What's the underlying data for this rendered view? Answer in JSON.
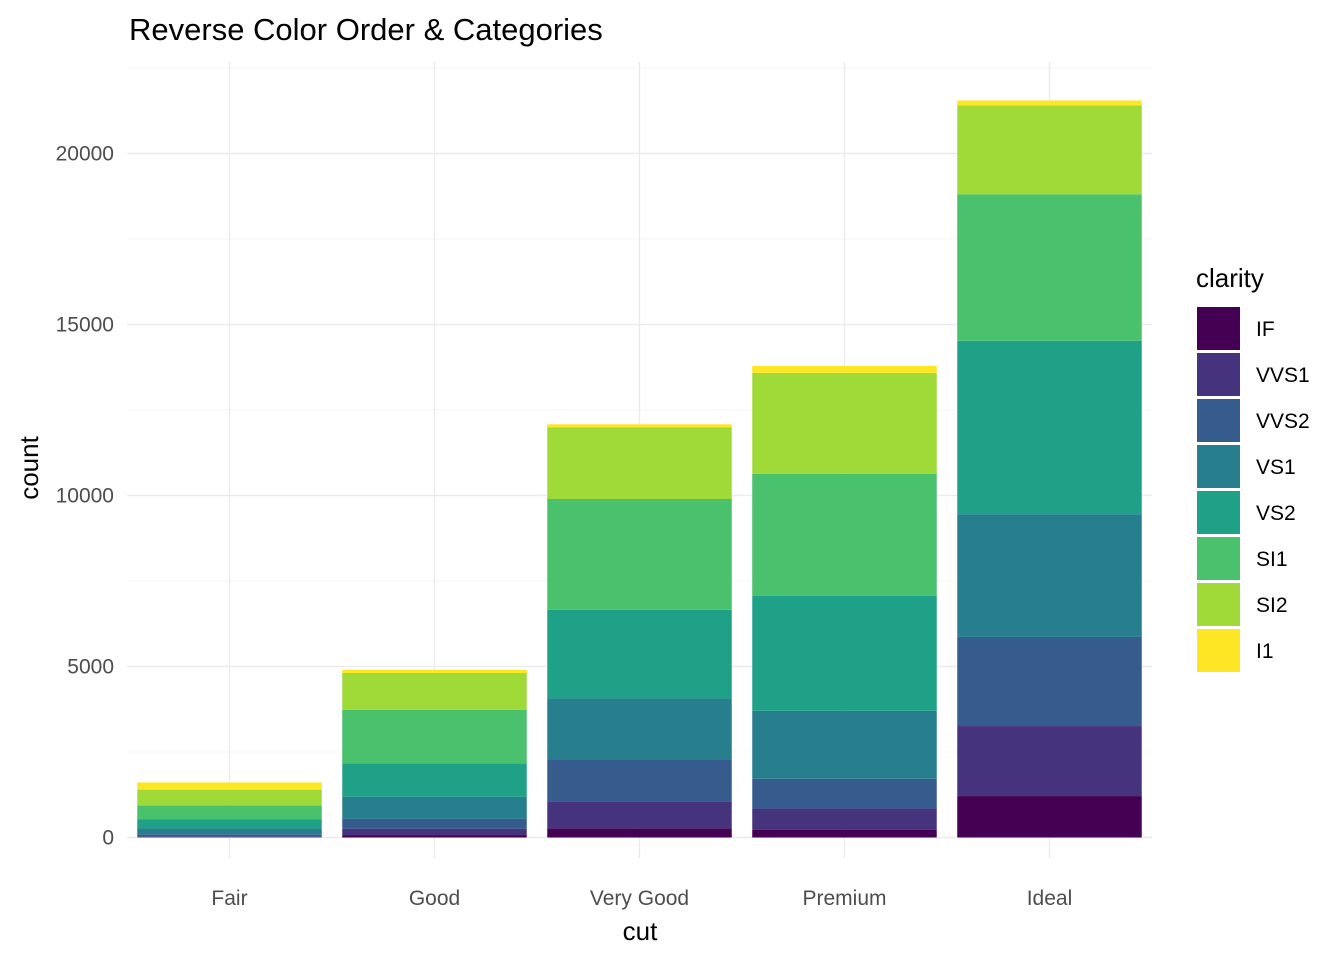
{
  "chart_data": {
    "type": "bar",
    "stacked": true,
    "title": "Reverse Color Order & Categories",
    "xlabel": "cut",
    "ylabel": "count",
    "ylim": [
      0,
      22600
    ],
    "yticks": [
      0,
      5000,
      10000,
      15000,
      20000
    ],
    "grid": true,
    "legend": {
      "title": "clarity",
      "position": "right"
    },
    "categories": [
      "Fair",
      "Good",
      "Very Good",
      "Premium",
      "Ideal"
    ],
    "series": [
      {
        "name": "IF",
        "color": "#440154",
        "values": [
          9,
          71,
          268,
          230,
          1212
        ]
      },
      {
        "name": "VVS1",
        "color": "#46337E",
        "values": [
          17,
          186,
          789,
          616,
          2047
        ]
      },
      {
        "name": "VVS2",
        "color": "#365C8D",
        "values": [
          69,
          286,
          1235,
          870,
          2606
        ]
      },
      {
        "name": "VS1",
        "color": "#277F8E",
        "values": [
          170,
          648,
          1775,
          1989,
          3589
        ]
      },
      {
        "name": "VS2",
        "color": "#1FA187",
        "values": [
          261,
          978,
          2591,
          3357,
          5071
        ]
      },
      {
        "name": "SI1",
        "color": "#4AC16D",
        "values": [
          408,
          1560,
          3240,
          3575,
          4282
        ]
      },
      {
        "name": "SI2",
        "color": "#A0DA39",
        "values": [
          466,
          1081,
          2100,
          2949,
          2598
        ]
      },
      {
        "name": "I1",
        "color": "#FDE725",
        "values": [
          210,
          96,
          84,
          205,
          146
        ]
      }
    ]
  }
}
